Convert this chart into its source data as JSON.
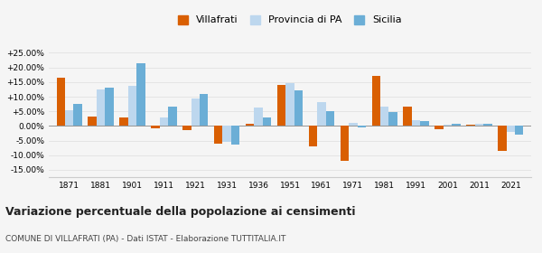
{
  "years": [
    1871,
    1881,
    1901,
    1911,
    1921,
    1931,
    1936,
    1951,
    1961,
    1971,
    1981,
    1991,
    2001,
    2011,
    2021
  ],
  "villafrati": [
    16.5,
    3.3,
    3.0,
    -0.8,
    -1.5,
    -6.2,
    0.8,
    14.0,
    -7.0,
    -12.0,
    17.0,
    6.5,
    -1.0,
    0.5,
    -8.5
  ],
  "provincia_pa": [
    5.5,
    12.5,
    13.8,
    2.8,
    9.5,
    -5.5,
    6.2,
    14.5,
    8.0,
    1.0,
    6.5,
    2.0,
    0.5,
    0.8,
    -2.0
  ],
  "sicilia": [
    7.5,
    13.0,
    21.5,
    6.5,
    10.8,
    -6.5,
    2.8,
    12.2,
    5.2,
    -0.5,
    4.8,
    1.8,
    0.8,
    0.8,
    -3.0
  ],
  "color_villafrati": "#d95f02",
  "color_provincia": "#bdd7ee",
  "color_sicilia": "#6baed6",
  "title": "Variazione percentuale della popolazione ai censimenti",
  "subtitle": "COMUNE DI VILLAFRATI (PA) - Dati ISTAT - Elaborazione TUTTITALIA.IT",
  "ylim": [
    -17.5,
    27.5
  ],
  "yticks": [
    -15,
    -10,
    -5,
    0,
    5,
    10,
    15,
    20,
    25
  ],
  "ytick_labels": [
    "-15.00%",
    "-10.00%",
    "-5.00%",
    "0.00%",
    "+5.00%",
    "+10.00%",
    "+15.00%",
    "+20.00%",
    "+25.00%"
  ],
  "bar_width": 0.27,
  "background_color": "#f5f5f5",
  "grid_color": "#dddddd"
}
